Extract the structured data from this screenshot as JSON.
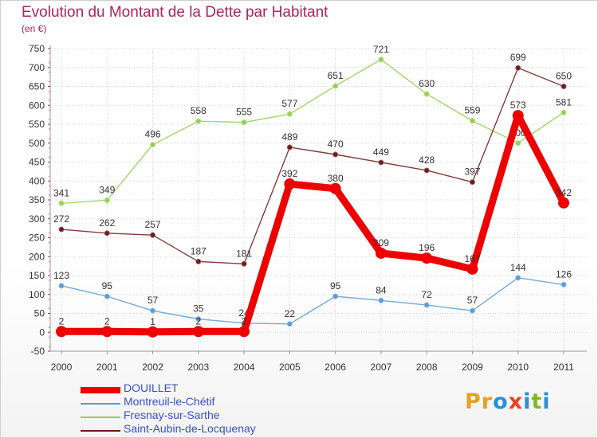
{
  "header": {
    "title": "Evolution du Montant de la Dette par Habitant",
    "unit": "(en €)"
  },
  "logo": {
    "text": "Proxiti"
  },
  "chart_data": {
    "type": "line",
    "title": "Evolution du Montant de la Dette par Habitant",
    "subtitle": "(en €)",
    "xlabel": "",
    "ylabel": "",
    "x": [
      "2000",
      "2001",
      "2002",
      "2003",
      "2004",
      "2005",
      "2006",
      "2007",
      "2008",
      "2009",
      "2010",
      "2011"
    ],
    "ylim": [
      -50,
      750
    ],
    "yticks": [
      -50,
      0,
      50,
      100,
      150,
      200,
      250,
      300,
      350,
      400,
      450,
      500,
      550,
      600,
      650,
      700,
      750
    ],
    "grid": true,
    "legend_position": "bottom-left",
    "series": [
      {
        "name": "Montreuil-le-Chétif",
        "color": "#5b9bd5",
        "values": [
          123,
          95,
          57,
          35,
          24,
          22,
          95,
          84,
          72,
          57,
          144,
          126
        ]
      },
      {
        "name": "Fresnay-sur-Sarthe",
        "color": "#92d050",
        "values": [
          341,
          349,
          496,
          558,
          555,
          577,
          651,
          721,
          630,
          559,
          500,
          581
        ]
      },
      {
        "name": "Saint-Aubin-de-Locquenay",
        "color": "#6b1a1a",
        "values": [
          272,
          262,
          257,
          187,
          181,
          489,
          470,
          449,
          428,
          397,
          699,
          650
        ]
      },
      {
        "name": "DOUILLET",
        "color": "#ee0000",
        "values": [
          2,
          2,
          1,
          2,
          2,
          392,
          380,
          209,
          196,
          167,
          573,
          342
        ]
      }
    ],
    "legend_order": [
      "DOUILLET",
      "Montreuil-le-Chétif",
      "Fresnay-sur-Sarthe",
      "Saint-Aubin-de-Locquenay"
    ],
    "label_color": "#333333"
  }
}
